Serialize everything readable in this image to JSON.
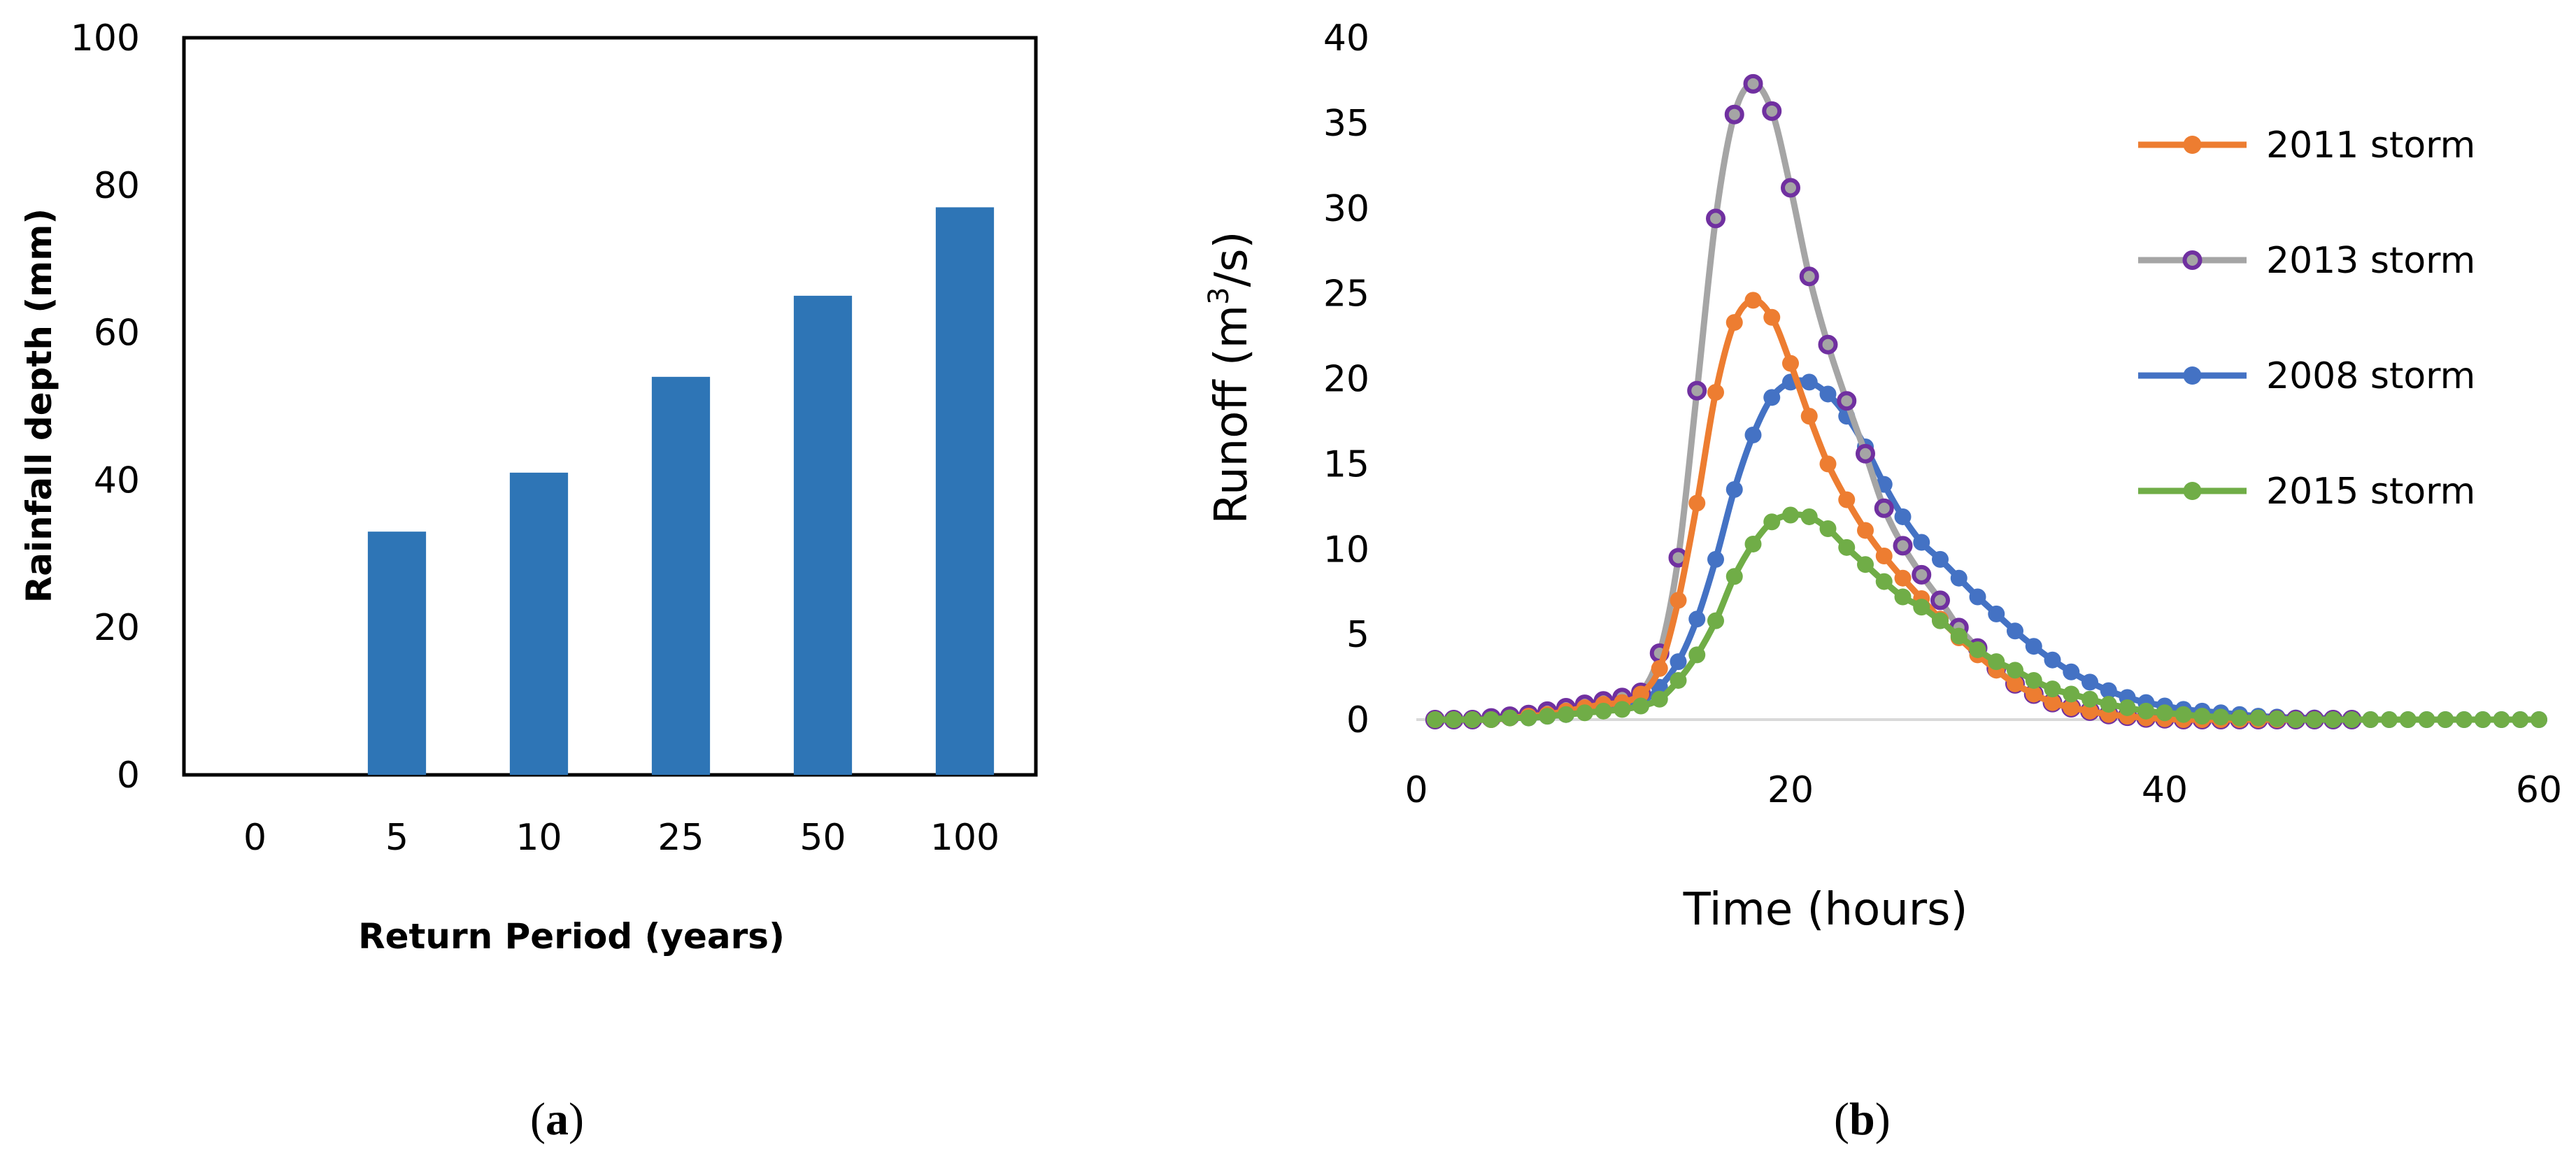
{
  "chart_data": [
    {
      "type": "bar",
      "panel_label": "(a)",
      "panel_letter": "a",
      "xlabel": "Return Period (years)",
      "ylabel": "Rainfall depth (mm)",
      "categories": [
        "0",
        "5",
        "10",
        "25",
        "50",
        "100"
      ],
      "values": [
        0,
        33,
        41,
        54,
        65,
        77
      ],
      "ylim": [
        0,
        100
      ],
      "yticks": [
        0,
        20,
        40,
        60,
        80,
        100
      ],
      "bar_color": "#2E75B6",
      "grid": false
    },
    {
      "type": "line",
      "panel_label": "(b)",
      "panel_letter": "b",
      "xlabel": "Time (hours)",
      "ylabel_main": "Runoff (m",
      "ylabel_sup": "3",
      "ylabel_tail": "/s)",
      "xlim": [
        0,
        60
      ],
      "ylim": [
        0,
        40
      ],
      "xticks": [
        0,
        20,
        40,
        60
      ],
      "yticks": [
        0,
        5,
        10,
        15,
        20,
        25,
        30,
        35,
        40
      ],
      "legend_position": "top-right",
      "grid": false,
      "series": [
        {
          "name": "2011 storm",
          "color": "#ED7D31",
          "marker": "filled-circle",
          "x": [
            1,
            2,
            3,
            4,
            5,
            6,
            7,
            8,
            9,
            10,
            11,
            12,
            13,
            14,
            15,
            16,
            17,
            18,
            19,
            20,
            21,
            22,
            23,
            24,
            25,
            26,
            27,
            28,
            29,
            30,
            31,
            32,
            33,
            34,
            35,
            36,
            37,
            38,
            39,
            40,
            41,
            42,
            43,
            44,
            45,
            46,
            47,
            48
          ],
          "y": [
            0,
            0,
            0,
            0,
            0.1,
            0.2,
            0.3,
            0.5,
            0.7,
            0.9,
            1.0,
            1.5,
            3.0,
            7.0,
            12.7,
            19.2,
            23.3,
            24.6,
            23.6,
            20.9,
            17.8,
            15.0,
            12.9,
            11.1,
            9.6,
            8.3,
            7.1,
            5.9,
            4.8,
            3.8,
            2.9,
            2.1,
            1.5,
            1.0,
            0.7,
            0.5,
            0.3,
            0.2,
            0.1,
            0.05,
            0,
            0,
            0,
            0,
            0,
            0,
            0,
            0
          ]
        },
        {
          "name": "2013 storm",
          "color": "#A5A5A5",
          "marker": "hollow-circle",
          "marker_edge": "#7030A0",
          "x": [
            1,
            2,
            3,
            4,
            5,
            6,
            7,
            8,
            9,
            10,
            11,
            12,
            13,
            14,
            15,
            16,
            17,
            18,
            19,
            20,
            21,
            22,
            23,
            24,
            25,
            26,
            27,
            28,
            29,
            30,
            31,
            32,
            33,
            34,
            35,
            36,
            37,
            38,
            39,
            40,
            41,
            42,
            43,
            44,
            45,
            46,
            47,
            48,
            49,
            50
          ],
          "y": [
            0,
            0,
            0,
            0.1,
            0.2,
            0.3,
            0.5,
            0.7,
            0.9,
            1.1,
            1.3,
            1.6,
            3.9,
            9.5,
            19.3,
            29.4,
            35.5,
            37.3,
            35.7,
            31.2,
            26.0,
            22.0,
            18.7,
            15.6,
            12.4,
            10.2,
            8.5,
            7.0,
            5.4,
            4.2,
            3.0,
            2.1,
            1.5,
            1.0,
            0.7,
            0.5,
            0.3,
            0.2,
            0.1,
            0.05,
            0,
            0,
            0,
            0,
            0,
            0,
            0,
            0,
            0,
            0
          ]
        },
        {
          "name": "2008 storm",
          "color": "#4472C4",
          "marker": "filled-circle",
          "x": [
            1,
            2,
            3,
            4,
            5,
            6,
            7,
            8,
            9,
            10,
            11,
            12,
            13,
            14,
            15,
            16,
            17,
            18,
            19,
            20,
            21,
            22,
            23,
            24,
            25,
            26,
            27,
            28,
            29,
            30,
            31,
            32,
            33,
            34,
            35,
            36,
            37,
            38,
            39,
            40,
            41,
            42,
            43,
            44,
            45,
            46,
            47,
            48,
            49,
            50,
            51,
            52,
            53,
            54,
            55,
            56,
            57,
            58,
            59,
            60
          ],
          "y": [
            0,
            0,
            0,
            0,
            0.1,
            0.1,
            0.2,
            0.3,
            0.5,
            0.6,
            0.8,
            1.0,
            1.9,
            3.4,
            5.9,
            9.4,
            13.5,
            16.7,
            18.9,
            19.8,
            19.8,
            19.1,
            17.8,
            16.0,
            13.8,
            11.9,
            10.4,
            9.4,
            8.3,
            7.2,
            6.2,
            5.2,
            4.3,
            3.5,
            2.8,
            2.2,
            1.7,
            1.3,
            1.0,
            0.8,
            0.6,
            0.5,
            0.4,
            0.3,
            0.2,
            0.15,
            0.1,
            0.1,
            0.05,
            0,
            0,
            0,
            0,
            0,
            0,
            0,
            0,
            0,
            0,
            0
          ]
        },
        {
          "name": "2015 storm",
          "color": "#70AD47",
          "marker": "filled-circle",
          "x": [
            1,
            2,
            3,
            4,
            5,
            6,
            7,
            8,
            9,
            10,
            11,
            12,
            13,
            14,
            15,
            16,
            17,
            18,
            19,
            20,
            21,
            22,
            23,
            24,
            25,
            26,
            27,
            28,
            29,
            30,
            31,
            32,
            33,
            34,
            35,
            36,
            37,
            38,
            39,
            40,
            41,
            42,
            43,
            44,
            45,
            46,
            47,
            48,
            49,
            50,
            51,
            52,
            53,
            54,
            55,
            56,
            57,
            58,
            59,
            60
          ],
          "y": [
            0,
            0,
            0,
            0,
            0.1,
            0.1,
            0.2,
            0.3,
            0.4,
            0.5,
            0.6,
            0.8,
            1.2,
            2.3,
            3.8,
            5.8,
            8.4,
            10.3,
            11.6,
            12.0,
            11.9,
            11.2,
            10.1,
            9.1,
            8.1,
            7.2,
            6.6,
            5.8,
            4.9,
            4.1,
            3.4,
            2.9,
            2.3,
            1.8,
            1.5,
            1.2,
            0.9,
            0.7,
            0.5,
            0.4,
            0.3,
            0.2,
            0.15,
            0.1,
            0.1,
            0.05,
            0,
            0,
            0,
            0,
            0,
            0,
            0,
            0,
            0,
            0,
            0,
            0,
            0,
            0
          ]
        }
      ]
    }
  ]
}
